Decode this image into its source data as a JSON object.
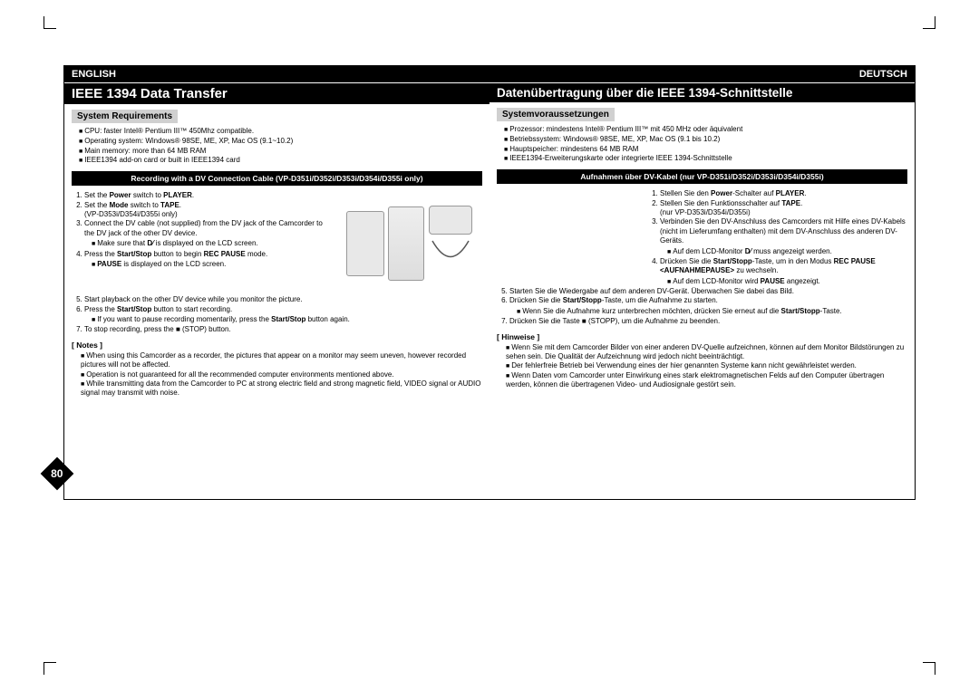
{
  "page_number": "80",
  "english": {
    "lang": "ENGLISH",
    "title": "IEEE 1394 Data Transfer",
    "sysreq_head": "System Requirements",
    "sysreq": [
      "CPU: faster Intel® Pentium III™ 450Mhz compatible.",
      "Operating system: Windows® 98SE, ME, XP, Mac OS (9.1~10.2)",
      "Main memory: more than 64 MB RAM",
      "IEEE1394 add-on card or built in IEEE1394 card"
    ],
    "rec_bar": "Recording with a DV Connection Cable (VP-D351i/D352i/D353i/D354i/D355i only)",
    "steps_a": [
      "Set the <b>Power</b> switch to <b>PLAYER</b>.",
      "Set the <b>Mode</b> switch to <b>TAPE</b>.<br>(VP-D353i/D354i/D355i only)",
      "Connect the DV cable (not supplied) from the DV jack of the Camcorder to the DV jack of the other DV device.<ul><li>Make sure that <span class='dv-icon'>D⁄</span> is displayed on the LCD screen.</li></ul>",
      "Press the <b>Start/Stop</b> button to begin <b>REC PAUSE</b> mode.<ul><li><b>PAUSE</b> is displayed on the LCD screen.</li></ul>"
    ],
    "steps_b": [
      "Start playback on the other DV device while you monitor the picture.",
      "Press the <b>Start/Stop</b> button to start recording.<ul><li>If you want to pause recording momentarily, press the <b>Start/Stop</b> button again.</li></ul>",
      "To stop recording, press the ■ (STOP) button."
    ],
    "notes_head": "[ Notes ]",
    "notes": [
      "When using this Camcorder as a recorder, the pictures that appear on a monitor may seem uneven, however recorded pictures will not be affected.",
      "Operation is not guaranteed for all the recommended computer environments mentioned above.",
      "While transmitting data from the Camcorder to PC at strong electric field and strong magnetic field, VIDEO signal or AUDIO signal may transmit with noise."
    ]
  },
  "deutsch": {
    "lang": "DEUTSCH",
    "title": "Datenübertragung über die IEEE 1394-Schnittstelle",
    "sysreq_head": "Systemvoraussetzungen",
    "sysreq": [
      "Prozessor: mindestens Intel® Pentium III™ mit 450 MHz oder äquivalent",
      "Betriebssystem: Windows® 98SE, ME, XP, Mac OS (9.1 bis 10.2)",
      "Hauptspeicher: mindestens 64 MB RAM",
      "IEEE1394-Erweiterungskarte oder integrierte IEEE 1394-Schnittstelle"
    ],
    "rec_bar": "Aufnahmen über DV-Kabel (nur VP-D351i/D352i/D353i/D354i/D355i)",
    "steps_a": [
      "Stellen Sie den <b>Power</b>-Schalter auf <b>PLAYER</b>.",
      "Stellen Sie den Funktionsschalter auf <b>TAPE</b>.<br>(nur VP-D353i/D354i/D355i)",
      "Verbinden Sie den DV-Anschluss des Camcorders mit Hilfe eines DV-Kabels (nicht im Lieferumfang enthalten) mit dem DV-Anschluss des anderen DV-Geräts.<ul><li>Auf dem LCD-Monitor <span class='dv-icon'>D⁄</span> muss angezeigt werden.</li></ul>",
      "Drücken Sie die <b>Start/Stopp</b>-Taste, um in den Modus <b>REC PAUSE &lt;AUFNAHMEPAUSE&gt;</b> zu wechseln.<ul><li>Auf dem LCD-Monitor wird <b>PAUSE</b> angezeigt.</li></ul>"
    ],
    "steps_b": [
      "Starten Sie die Wiedergabe auf dem anderen DV-Gerät. Überwachen Sie dabei das Bild.",
      "Drücken Sie die <b>Start/Stopp</b>-Taste, um die Aufnahme zu starten.<ul><li>Wenn Sie die Aufnahme kurz unterbrechen möchten, drücken Sie erneut auf die <b>Start/Stopp</b>-Taste.</li></ul>",
      "Drücken Sie die Taste ■ (STOPP), um die Aufnahme zu beenden."
    ],
    "notes_head": "[ Hinweise ]",
    "notes": [
      "Wenn Sie mit dem Camcorder Bilder von einer anderen DV-Quelle aufzeichnen, können auf dem Monitor Bildstörungen zu sehen sein. Die Qualität der Aufzeichnung wird jedoch nicht beeinträchtigt.",
      "Der fehlerfreie Betrieb bei Verwendung eines der hier genannten Systeme kann nicht gewährleistet werden.",
      "Wenn Daten vom Camcorder unter Einwirkung eines stark elektromagnetischen Felds auf den Computer übertragen werden, können die übertragenen Video- und Audiosignale gestört sein."
    ]
  },
  "colors": {
    "black": "#000000",
    "grey": "#d0d0d0",
    "white": "#ffffff"
  }
}
